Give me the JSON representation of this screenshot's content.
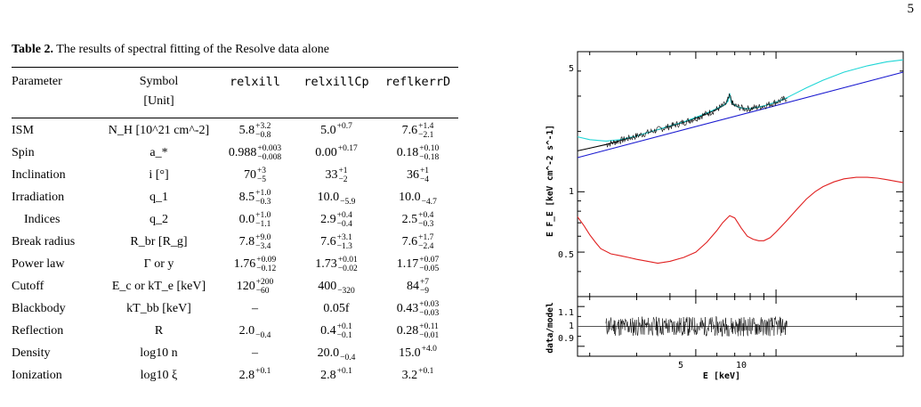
{
  "page_number": "5",
  "table": {
    "caption_label": "Table 2.",
    "caption_text": "The results of spectral fitting of the Resolve data alone",
    "headers": [
      "Parameter",
      "Symbol",
      "relxill",
      "relxillCp",
      "reflkerrD"
    ],
    "unit_header": "[Unit]",
    "rows": [
      {
        "param": "ISM",
        "symbol": "N_H [10^21 cm^-2]",
        "cells": [
          {
            "v": "5.8",
            "up": "+3.2",
            "lo": "−0.8"
          },
          {
            "v": "5.0",
            "up": "+0.7",
            "lo": ""
          },
          {
            "v": "7.6",
            "up": "+1.4",
            "lo": "−2.1"
          }
        ]
      },
      {
        "param": "Spin",
        "symbol": "a_*",
        "cells": [
          {
            "v": "0.988",
            "up": "+0.003",
            "lo": "−0.008"
          },
          {
            "v": "0.00",
            "up": "+0.17",
            "lo": ""
          },
          {
            "v": "0.18",
            "up": "+0.10",
            "lo": "−0.18"
          }
        ]
      },
      {
        "param": "Inclination",
        "symbol": "i [°]",
        "cells": [
          {
            "v": "70",
            "up": "+3",
            "lo": "−5"
          },
          {
            "v": "33",
            "up": "+1",
            "lo": "−2"
          },
          {
            "v": "36",
            "up": "+1",
            "lo": "−4"
          }
        ]
      },
      {
        "param": "Irradiation",
        "symbol": "q_1",
        "cells": [
          {
            "v": "8.5",
            "up": "+1.0",
            "lo": "−0.3"
          },
          {
            "v": "10.0",
            "up": "",
            "lo": "−5.9"
          },
          {
            "v": "10.0",
            "up": "",
            "lo": "−4.7"
          }
        ]
      },
      {
        "param": "Indices",
        "symbol": "q_2",
        "cells": [
          {
            "v": "0.0",
            "up": "+1.0",
            "lo": "−1.1"
          },
          {
            "v": "2.9",
            "up": "+0.4",
            "lo": "−0.4"
          },
          {
            "v": "2.5",
            "up": "+0.4",
            "lo": "−0.3"
          }
        ]
      },
      {
        "param": "Break radius",
        "symbol": "R_br [R_g]",
        "cells": [
          {
            "v": "7.8",
            "up": "+9.0",
            "lo": "−3.4"
          },
          {
            "v": "7.6",
            "up": "+3.1",
            "lo": "−1.3"
          },
          {
            "v": "7.6",
            "up": "+1.7",
            "lo": "−2.4"
          }
        ]
      },
      {
        "param": "Power law",
        "symbol": "Γ or y",
        "cells": [
          {
            "v": "1.76",
            "up": "+0.09",
            "lo": "−0.12"
          },
          {
            "v": "1.73",
            "up": "+0.01",
            "lo": "−0.02"
          },
          {
            "v": "1.17",
            "up": "+0.07",
            "lo": "−0.05"
          }
        ]
      },
      {
        "param": "Cutoff",
        "symbol": "E_c or kT_e [keV]",
        "cells": [
          {
            "v": "120",
            "up": "+200",
            "lo": "−60"
          },
          {
            "v": "400",
            "up": "",
            "lo": "−320"
          },
          {
            "v": "84",
            "up": "+7",
            "lo": "−9"
          }
        ]
      },
      {
        "param": "Blackbody",
        "symbol": "kT_bb [keV]",
        "cells": [
          {
            "v": "–",
            "up": "",
            "lo": ""
          },
          {
            "v": "0.05f",
            "up": "",
            "lo": ""
          },
          {
            "v": "0.43",
            "up": "+0.03",
            "lo": "−0.03"
          }
        ]
      },
      {
        "param": "Reflection",
        "symbol": "R",
        "cells": [
          {
            "v": "2.0",
            "up": "",
            "lo": "−0.4"
          },
          {
            "v": "0.4",
            "up": "+0.1",
            "lo": "−0.1"
          },
          {
            "v": "0.28",
            "up": "+0.11",
            "lo": "−0.01"
          }
        ]
      },
      {
        "param": "Density",
        "symbol": "log10 n",
        "cells": [
          {
            "v": "–",
            "up": "",
            "lo": ""
          },
          {
            "v": "20.0",
            "up": "",
            "lo": "−0.4"
          },
          {
            "v": "15.0",
            "up": "+4.0",
            "lo": ""
          }
        ]
      },
      {
        "param": "Ionization",
        "symbol": "log10 ξ",
        "cells": [
          {
            "v": "2.8",
            "up": "+0.1",
            "lo": ""
          },
          {
            "v": "2.8",
            "up": "+0.1",
            "lo": ""
          },
          {
            "v": "3.2",
            "up": "+0.1",
            "lo": ""
          }
        ]
      }
    ]
  },
  "figure": {
    "ylabel_top": "E F_E [keV cm^-2 s^-1]",
    "ylabel_bottom": "data/model",
    "xlabel": "E [keV]",
    "y_ticks_top": [
      "5",
      "1",
      "0.5"
    ],
    "y_ticks_bottom": [
      "1.1",
      "1",
      "0.9"
    ],
    "x_ticks": [
      "5",
      "10"
    ]
  },
  "chart_data": {
    "type": "line",
    "xlabel": "E [keV]",
    "ylabel": "E F_E [keV cm^-2 s^-1]",
    "xscale": "log",
    "yscale": "log",
    "xlim": [
      1.8,
      30
    ],
    "ylim": [
      0.3,
      5
    ],
    "colors": {
      "black": "#000000",
      "cyan": "#1fd6d6",
      "blue": "#1a1ad0",
      "red": "#e02020"
    },
    "series": [
      {
        "color": "black",
        "x": [
          1.8,
          2.0,
          2.3,
          2.6,
          3.0,
          3.5,
          4.0,
          4.5,
          5.0,
          5.5,
          6.0,
          6.3,
          6.5,
          6.7,
          6.9,
          7.2,
          7.6,
          8.0,
          9.0,
          10.0,
          11.0
        ],
        "y": [
          1.6,
          1.65,
          1.72,
          1.8,
          1.9,
          2.02,
          2.12,
          2.22,
          2.33,
          2.45,
          2.58,
          2.68,
          2.75,
          3.0,
          2.72,
          2.65,
          2.6,
          2.6,
          2.68,
          2.8,
          2.93
        ]
      },
      {
        "color": "cyan",
        "x": [
          1.8,
          2.0,
          2.3,
          2.6,
          3.0,
          3.5,
          4.0,
          4.5,
          5.0,
          5.5,
          6.0,
          6.4,
          6.6,
          6.7,
          6.8,
          7.2,
          7.6,
          8.0,
          9.0,
          10.0,
          11.0,
          13.0,
          15.0,
          18.0,
          22.0,
          26.0,
          30.0
        ],
        "y": [
          1.88,
          1.82,
          1.79,
          1.82,
          1.9,
          2.02,
          2.13,
          2.23,
          2.35,
          2.47,
          2.6,
          2.72,
          2.82,
          3.1,
          2.78,
          2.65,
          2.6,
          2.6,
          2.68,
          2.8,
          2.95,
          3.3,
          3.6,
          3.95,
          4.25,
          4.45,
          4.55
        ]
      },
      {
        "color": "blue",
        "x": [
          1.8,
          30.0
        ],
        "y": [
          1.48,
          3.95
        ]
      },
      {
        "color": "red",
        "x": [
          1.8,
          1.9,
          2.0,
          2.1,
          2.2,
          2.4,
          2.6,
          2.8,
          3.0,
          3.3,
          3.6,
          4.0,
          4.5,
          5.0,
          5.5,
          6.0,
          6.3,
          6.5,
          6.7,
          7.0,
          7.4,
          7.8,
          8.2,
          8.6,
          9.0,
          9.5,
          10.0,
          11.0,
          12.0,
          13.0,
          14.0,
          15.0,
          16.5,
          18.0,
          20.0,
          22.0,
          24.0,
          26.0,
          28.0,
          30.0
        ],
        "y": [
          0.75,
          0.68,
          0.61,
          0.56,
          0.52,
          0.49,
          0.48,
          0.47,
          0.46,
          0.45,
          0.44,
          0.45,
          0.47,
          0.5,
          0.56,
          0.64,
          0.7,
          0.73,
          0.76,
          0.74,
          0.66,
          0.6,
          0.58,
          0.57,
          0.57,
          0.59,
          0.63,
          0.72,
          0.82,
          0.92,
          1.0,
          1.06,
          1.12,
          1.16,
          1.18,
          1.18,
          1.17,
          1.15,
          1.13,
          1.11
        ]
      }
    ],
    "residuals": {
      "x_range": [
        2.3,
        11.0
      ],
      "center": 1.0,
      "scatter": 0.05,
      "ylim": [
        0.85,
        1.15
      ],
      "color": "black"
    }
  }
}
